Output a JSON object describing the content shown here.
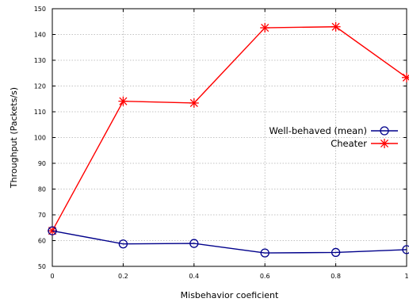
{
  "chart_data": {
    "type": "line",
    "title": "",
    "xlabel": "Misbehavior coeficient",
    "ylabel": "Throughput (Packets/s)",
    "xlim": [
      0,
      1
    ],
    "ylim": [
      50,
      150
    ],
    "xticks": [
      0,
      0.2,
      0.4,
      0.6,
      0.8,
      1
    ],
    "xtick_labels": [
      "0",
      "0.2",
      "0.4",
      "0.6",
      "0.8",
      "1"
    ],
    "yticks": [
      50,
      60,
      70,
      80,
      90,
      100,
      110,
      120,
      130,
      140,
      150
    ],
    "grid": true,
    "legend_position": "right",
    "x": [
      0,
      0.2,
      0.4,
      0.6,
      0.8,
      1
    ],
    "series": [
      {
        "name": "Well-behaved (mean)",
        "values": [
          63.8,
          58.7,
          58.9,
          55.2,
          55.4,
          56.5
        ],
        "color": "#00008b",
        "marker": "circle"
      },
      {
        "name": "Cheater",
        "values": [
          63.8,
          114.1,
          113.4,
          142.6,
          143.0,
          123.3
        ],
        "color": "#ff0000",
        "marker": "asterisk"
      }
    ]
  }
}
